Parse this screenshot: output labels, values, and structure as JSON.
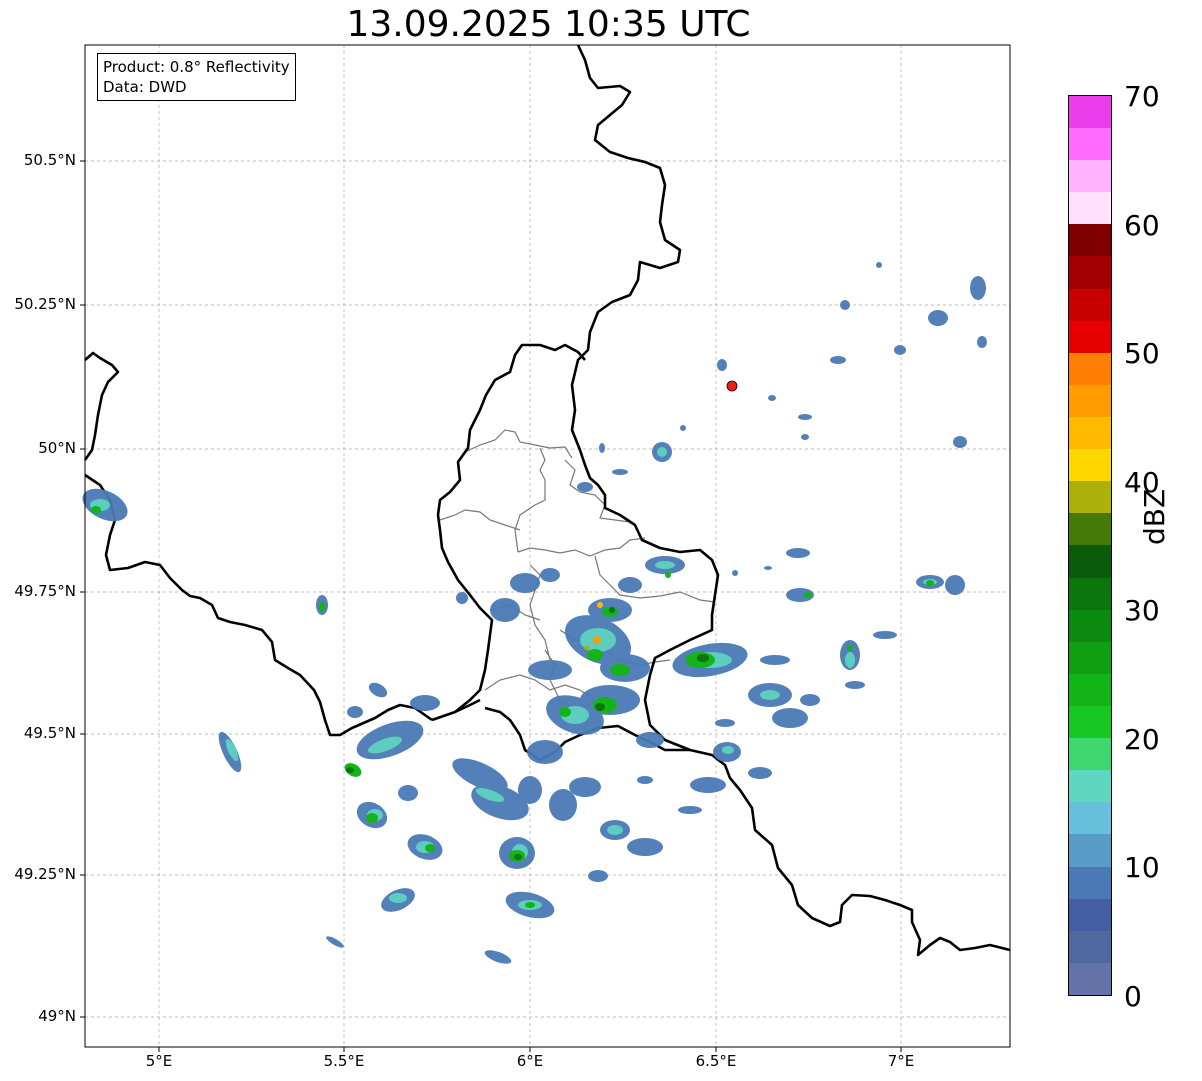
{
  "title": "13.09.2025 10:35 UTC",
  "info": {
    "product": "Product: 0.8° Reflectivity",
    "source": "Data: DWD"
  },
  "lat_ticks": [
    "50.5°N",
    "50.25°N",
    "50°N",
    "49.75°N",
    "49.5°N",
    "49.25°N",
    "49°N"
  ],
  "lon_ticks": [
    "5°E",
    "5.5°E",
    "6°E",
    "6.5°E",
    "7°E"
  ],
  "colorbar": {
    "label": "dBZ",
    "ticks": [
      "0",
      "10",
      "20",
      "30",
      "40",
      "50",
      "60",
      "70"
    ],
    "colors": [
      "#6373a8",
      "#5068a0",
      "#445ea3",
      "#4a7ab6",
      "#5a9cc8",
      "#68c0dc",
      "#5fd6c0",
      "#3dd66f",
      "#18c822",
      "#13b418",
      "#109e12",
      "#0c8a10",
      "#0a760d",
      "#0a5c0a",
      "#467a08",
      "#adb008",
      "#ffd700",
      "#ffba00",
      "#ff9c00",
      "#ff7e00",
      "#e60000",
      "#c80000",
      "#a00000",
      "#800000",
      "#ffe0ff",
      "#ffb4ff",
      "#ff6cff",
      "#ec3cec"
    ]
  },
  "radar_site_color": "#ee1c1c"
}
